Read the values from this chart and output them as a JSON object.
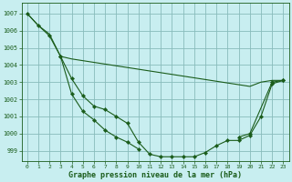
{
  "xlabel": "Graphe pression niveau de la mer (hPa)",
  "bg_color": "#c8eef0",
  "grid_color": "#88bbbb",
  "line_color": "#1a5c1a",
  "xlim": [
    -0.5,
    23.5
  ],
  "ylim": [
    998.4,
    1007.6
  ],
  "yticks": [
    999,
    1000,
    1001,
    1002,
    1003,
    1004,
    1005,
    1006,
    1007
  ],
  "xticks": [
    0,
    1,
    2,
    3,
    4,
    5,
    6,
    7,
    8,
    9,
    10,
    11,
    12,
    13,
    14,
    15,
    16,
    17,
    18,
    19,
    20,
    21,
    22,
    23
  ],
  "line_flat": [
    1007.0,
    1006.3,
    1005.8,
    1004.5,
    1004.35,
    1004.25,
    1004.15,
    1004.05,
    1003.95,
    1003.85,
    1003.75,
    1003.65,
    1003.55,
    1003.45,
    1003.35,
    1003.25,
    1003.15,
    1003.05,
    1002.95,
    1002.85,
    1002.75,
    1003.0,
    1003.1,
    1003.1
  ],
  "line_steep": [
    1007.0,
    1006.3,
    1005.7,
    1004.5,
    1003.2,
    1002.2,
    1001.6,
    1001.4,
    1001.0,
    1000.6,
    999.5,
    998.8,
    998.65,
    998.65,
    998.65,
    998.65,
    998.9,
    999.3,
    999.6,
    999.6,
    999.9,
    1001.0,
    1002.9,
    1003.1
  ],
  "line_mid_x": [
    3,
    4,
    5,
    6,
    7,
    8,
    9,
    10,
    19,
    20,
    22,
    23
  ],
  "line_mid_y": [
    1004.5,
    1002.3,
    1001.3,
    1000.8,
    1000.2,
    999.8,
    999.5,
    999.1,
    999.8,
    1000.0,
    1003.0,
    1003.1
  ]
}
